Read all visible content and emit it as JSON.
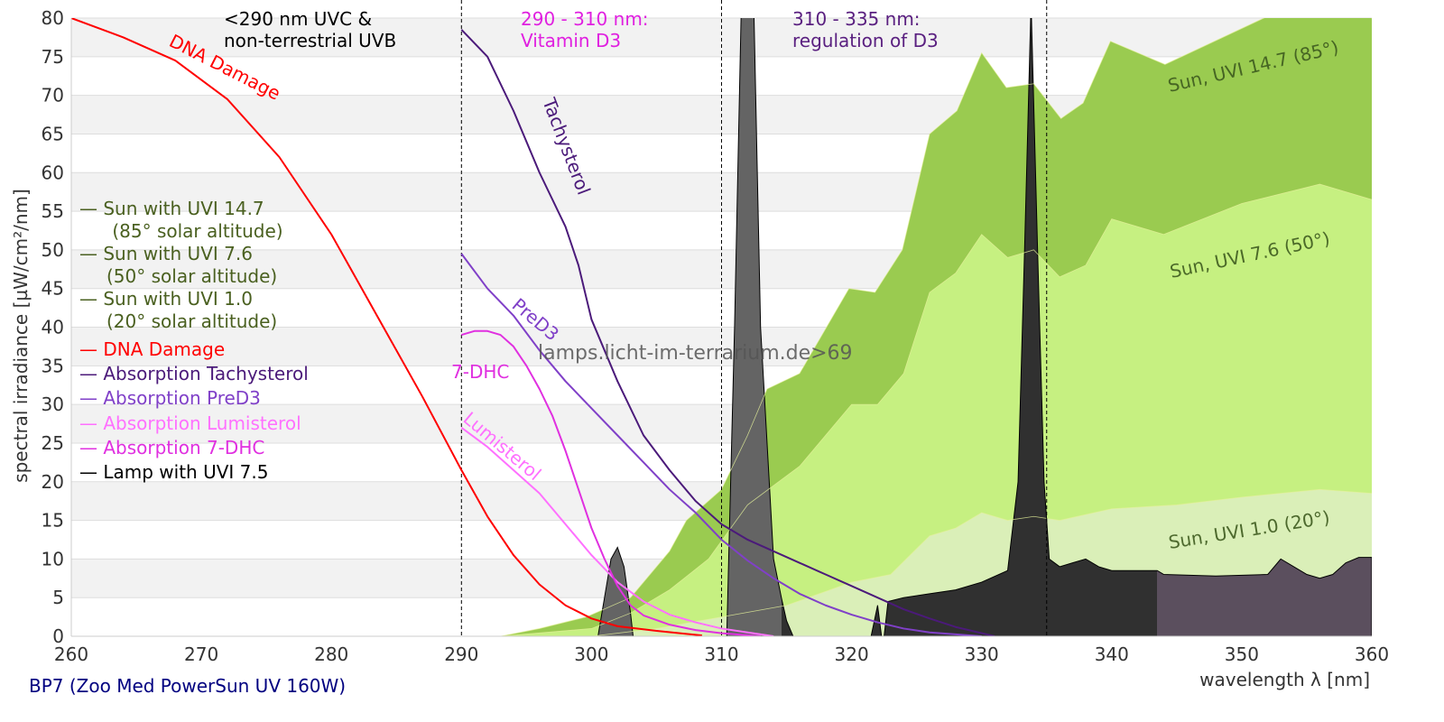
{
  "chart_data": {
    "type": "area",
    "xlabel": "wavelength λ [nm]",
    "ylabel": "spectral irradiance [µW/cm²/nm]",
    "subtitle": "BP7 (Zoo Med PowerSun UV 160W)",
    "watermark": "lamps.licht-im-terrarium.de>69",
    "xlim": [
      260,
      360
    ],
    "ylim": [
      0,
      80
    ],
    "xticks": [
      260,
      270,
      280,
      290,
      300,
      310,
      320,
      330,
      340,
      350,
      360
    ],
    "yticks": [
      0,
      5,
      10,
      15,
      20,
      25,
      30,
      35,
      40,
      45,
      50,
      55,
      60,
      65,
      70,
      75,
      80
    ],
    "grid": true,
    "vlines": [
      290,
      310,
      335
    ],
    "annotations": [
      {
        "lines": [
          "<290 nm UVC &",
          "non-terrestrial UVB"
        ],
        "color": "#000000",
        "x": 266.5
      },
      {
        "lines": [
          "290 - 310 nm:",
          "Vitamin D3"
        ],
        "color": "#e020e0",
        "x": 294.5
      },
      {
        "lines": [
          "310 - 335 nm:",
          "regulation of D3"
        ],
        "color": "#5a2080",
        "x": 315.5
      }
    ],
    "areas": [
      {
        "name": "Sun, UVI 14.7 (85°)",
        "legend": [
          "Sun with UVI 14.7",
          " (85° solar altitude)"
        ],
        "color": "#9acb50",
        "label_color": "#3d5a1e",
        "x": [
          293,
          296,
          299.6,
          303,
          306,
          307.3,
          310,
          312,
          313.5,
          316,
          319.8,
          321.8,
          323.9,
          326,
          328.1,
          330,
          331.9,
          334,
          336.1,
          337.8,
          339.9,
          344.1,
          351.7,
          355.9,
          360
        ],
        "y": [
          0,
          1,
          2.5,
          5,
          11,
          15,
          19,
          26,
          32,
          34,
          45,
          44.5,
          50,
          65,
          68,
          75.5,
          71,
          71.5,
          67,
          69,
          77,
          74,
          80,
          83,
          80
        ]
      },
      {
        "name": "Sun, UVI 7.6 (50°)",
        "legend": [
          "Sun with UVI 7.6",
          " (50° solar altitude)"
        ],
        "color": "#c6f081",
        "label_color": "#3d5a1e",
        "x": [
          293,
          300,
          303,
          306,
          309,
          312,
          316,
          320,
          322,
          324,
          326,
          328,
          330,
          332,
          334,
          336,
          338,
          340,
          344,
          350,
          356,
          360
        ],
        "y": [
          0,
          1,
          3,
          6,
          10,
          17,
          22,
          30,
          30,
          34,
          44.5,
          47,
          52,
          49,
          50,
          46.5,
          48,
          54,
          52,
          56,
          58.5,
          56.5
        ]
      },
      {
        "name": "Sun, UVI 1.0 (20°)",
        "legend": [
          "Sun with UVI 1.0",
          " (20° solar altitude)"
        ],
        "color": "#daefb8",
        "label_color": "#3d5a1e",
        "x": [
          300,
          305,
          310,
          315,
          320,
          323,
          326,
          328,
          330,
          332,
          334,
          336,
          340,
          345,
          350,
          356,
          360
        ],
        "y": [
          0,
          1,
          2.5,
          4,
          7,
          8,
          13,
          14,
          16,
          15,
          15.5,
          15,
          16.5,
          17,
          18,
          19,
          18.5
        ]
      },
      {
        "name": "Lamp with UVI 7.5",
        "legend": [
          "Lamp with UVI 7.5"
        ],
        "color": "#000000",
        "color_regions": [
          {
            "to": 314.6,
            "color": "#646464"
          },
          {
            "to": 343.5,
            "color": "#303030"
          },
          {
            "to": 360,
            "color": "#5b4f5e"
          }
        ],
        "x": [
          300.5,
          301,
          301.5,
          302,
          302.5,
          303,
          303.2,
          303.3,
          310.4,
          311,
          311.5,
          312,
          312.5,
          313,
          314,
          314.6,
          315,
          315.5,
          315.6,
          321.5,
          322,
          322.3,
          322.5,
          322.8,
          324,
          326,
          328,
          330,
          332,
          332.8,
          333.3,
          333.8,
          334.3,
          334.8,
          335.2,
          336,
          337,
          338,
          339,
          340,
          343.5,
          344,
          348,
          352,
          353,
          354,
          355,
          356,
          357,
          358,
          359,
          360
        ],
        "y": [
          0,
          5,
          10,
          11.5,
          9,
          3,
          0,
          0,
          0,
          40,
          80,
          95,
          80,
          40,
          10,
          5,
          2,
          0,
          0,
          0,
          4,
          0,
          0,
          4.5,
          5,
          5.5,
          6,
          7,
          8.5,
          20,
          50,
          82,
          50,
          20,
          10,
          9,
          9.5,
          10,
          9,
          8.5,
          8.5,
          8,
          7.8,
          8,
          10,
          9,
          8,
          7.5,
          8,
          9.5,
          10.2,
          10.2
        ]
      }
    ],
    "series": [
      {
        "name": "DNA Damage",
        "legend": "DNA Damage",
        "color": "#ff0000",
        "x": [
          260,
          264,
          268,
          272,
          276,
          280,
          284,
          287,
          290,
          292,
          294,
          296,
          298,
          300,
          302,
          305,
          308.5
        ],
        "y": [
          80,
          77.5,
          74.5,
          69.5,
          62,
          52,
          40,
          31,
          21.5,
          15.5,
          10.5,
          6.7,
          4,
          2.3,
          1.3,
          0.7,
          0.1
        ]
      },
      {
        "name": "Tachysterol",
        "legend": "Absorption Tachysterol",
        "color": "#4b1a7a",
        "x": [
          290,
          292,
          294,
          296,
          298,
          299,
          300,
          302,
          304,
          306,
          308,
          310,
          312,
          314,
          316,
          318,
          320,
          322,
          324,
          326,
          328,
          331
        ],
        "y": [
          78.5,
          75,
          68,
          60,
          53,
          48,
          41,
          33,
          26,
          21.5,
          17.5,
          14.5,
          12.5,
          11,
          9.5,
          8,
          6.5,
          5,
          3.5,
          2.3,
          1.2,
          0
        ]
      },
      {
        "name": "PreD3",
        "legend": "Absorption PreD3",
        "color": "#8040c8",
        "x": [
          290,
          292,
          294,
          296,
          298,
          300,
          302,
          304,
          306,
          308,
          310,
          312,
          314,
          316,
          318,
          320,
          322,
          324,
          326,
          330
        ],
        "y": [
          49.5,
          45,
          41.5,
          37,
          33,
          29.5,
          26,
          22.5,
          19,
          16,
          12.5,
          9.8,
          7.5,
          5.5,
          4,
          2.8,
          1.8,
          1,
          0.5,
          0
        ]
      },
      {
        "name": "Lumisterol",
        "legend": "Absorption Lumisterol",
        "color": "#ff70ff",
        "x": [
          290,
          292,
          294,
          296,
          298,
          300,
          302,
          304,
          306,
          308,
          310,
          312,
          314
        ],
        "y": [
          27,
          24.5,
          21.5,
          18.5,
          14.5,
          10.5,
          7,
          4.5,
          2.8,
          1.8,
          1,
          0.5,
          0
        ]
      },
      {
        "name": "7-DHC",
        "legend": "Absorption 7-DHC",
        "color": "#e030e0",
        "x": [
          290,
          291,
          292,
          293,
          294,
          295,
          296,
          297,
          298,
          299,
          300,
          301,
          302,
          303,
          304,
          306,
          308,
          310,
          313
        ],
        "y": [
          39,
          39.5,
          39.5,
          39,
          37.5,
          35,
          32,
          28.5,
          24,
          19,
          14,
          10,
          6.5,
          4,
          2.7,
          1.5,
          0.8,
          0.4,
          0
        ]
      }
    ],
    "curve_labels": [
      {
        "text": "DNA Damage",
        "color": "#ff0000"
      },
      {
        "text": "Tachysterol",
        "color": "#4b1a7a"
      },
      {
        "text": "PreD3",
        "color": "#8040c8"
      },
      {
        "text": "7-DHC",
        "color": "#e030e0"
      },
      {
        "text": "Lumisterol",
        "color": "#ff70ff"
      }
    ]
  }
}
